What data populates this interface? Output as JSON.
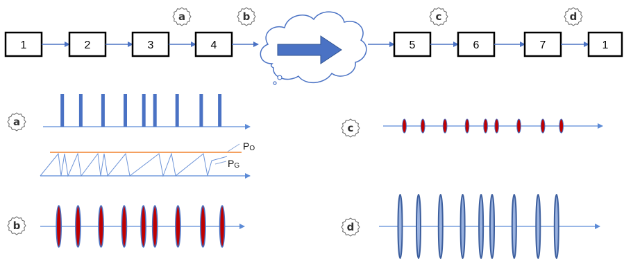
{
  "pipeline": {
    "stages_left": [
      "1",
      "2",
      "3",
      "4"
    ],
    "stages_right": [
      "5",
      "6",
      "7",
      "1"
    ],
    "markers": {
      "a": "a",
      "b": "b",
      "c": "c",
      "d": "d"
    },
    "cloud_arrow_icon": "right-arrow-icon"
  },
  "panels": {
    "a": {
      "label": "a",
      "pulse_times": [
        0.1,
        0.2,
        0.32,
        0.44,
        0.54,
        0.6,
        0.72,
        0.85,
        0.95
      ]
    },
    "b": {
      "label": "b",
      "pulse_times": [
        0.1,
        0.2,
        0.32,
        0.44,
        0.54,
        0.6,
        0.72,
        0.85,
        0.95
      ]
    },
    "c": {
      "label": "c",
      "pulse_times": [
        0.1,
        0.2,
        0.32,
        0.44,
        0.54,
        0.6,
        0.72,
        0.85,
        0.95
      ]
    },
    "d": {
      "label": "d",
      "pulse_times": [
        0.1,
        0.2,
        0.32,
        0.44,
        0.54,
        0.6,
        0.72,
        0.85,
        0.95
      ]
    }
  },
  "power_labels": {
    "po_main": "P",
    "po_sub": "O",
    "pg_main": "P",
    "pg_sub": "G"
  },
  "colors": {
    "pulse_blue": "#4a72c4",
    "pulse_red": "#c00000",
    "axis_blue": "#5b8ad6",
    "threshold_orange": "#f4a060"
  }
}
